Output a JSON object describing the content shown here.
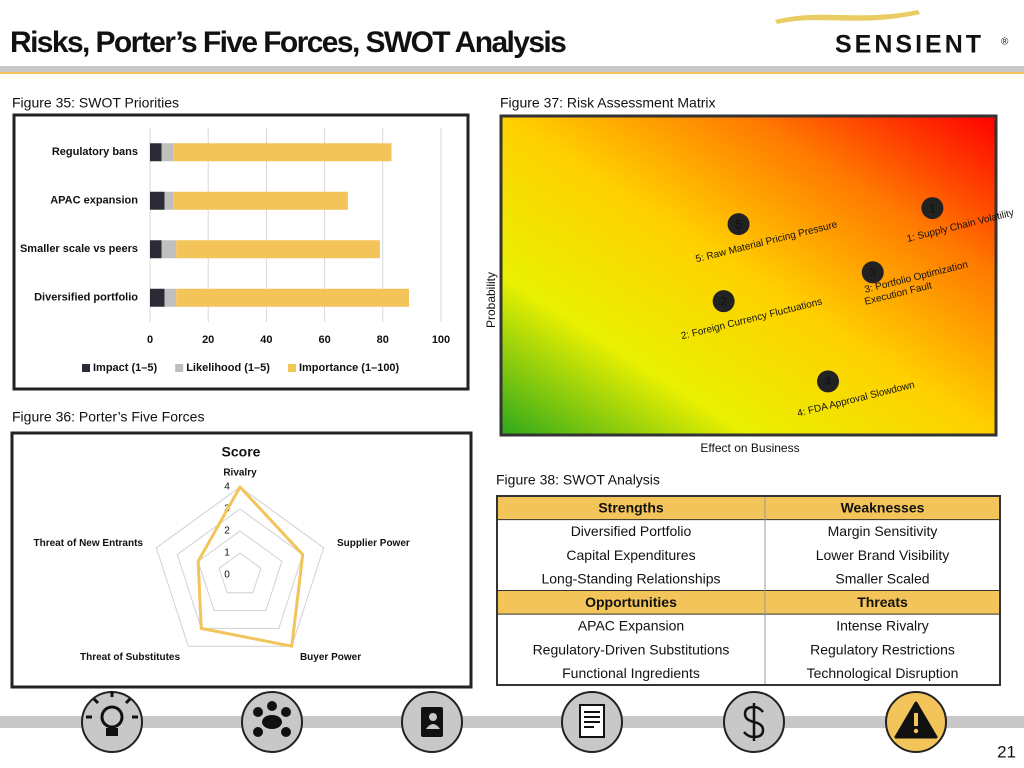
{
  "header": {
    "title": "Risks, Porter’s Five Forces, SWOT Analysis",
    "logo": "SENSIENT",
    "logo_mark": "®"
  },
  "page_number": "21",
  "chart_data": [
    {
      "type": "bar",
      "caption": "Figure 35: SWOT Priorities",
      "orientation": "horizontal",
      "stacked": true,
      "categories": [
        "Regulatory bans",
        "APAC expansion",
        "Smaller scale vs peers",
        "Diversified portfolio"
      ],
      "series": [
        {
          "name": "Impact (1–5)",
          "color": "#2b2b36",
          "values": [
            4,
            5,
            4,
            5
          ]
        },
        {
          "name": "Likelihood (1–5)",
          "color": "#bfbfbf",
          "values": [
            4,
            3,
            5,
            4
          ]
        },
        {
          "name": "Importance (1–100)",
          "color": "#f2c45a",
          "values": [
            75,
            60,
            70,
            80
          ]
        }
      ],
      "xlim": [
        0,
        100
      ],
      "xticks": [
        0,
        20,
        40,
        60,
        80,
        100
      ],
      "grid": true,
      "legend": "bottom"
    },
    {
      "type": "radar",
      "caption": "Figure 36: Porter’s Five Forces",
      "title": "Score",
      "categories": [
        "Rivalry",
        "Supplier Power",
        "Buyer Power",
        "Threat of Substitutes",
        "Threat of New Entrants"
      ],
      "values": [
        4,
        3,
        4,
        3,
        2
      ],
      "rlim": [
        0,
        4
      ],
      "rticks": [
        0,
        1,
        2,
        3,
        4
      ],
      "color": "#f2c45a",
      "grid": true
    },
    {
      "type": "scatter",
      "caption": "Figure 37: Risk Assessment Matrix",
      "xlabel": "Effect on Business",
      "ylabel": "Probability",
      "xlim": [
        0,
        1
      ],
      "ylim": [
        0,
        1
      ],
      "x": [
        0.87,
        0.45,
        0.75,
        0.66,
        0.48
      ],
      "y": [
        0.71,
        0.42,
        0.51,
        0.17,
        0.66
      ],
      "markers": [
        "1",
        "2",
        "3",
        "4",
        "5"
      ],
      "labels": [
        [
          "1: Supply Chain Volatility"
        ],
        [
          "2: Foreign Currency Fluctuations"
        ],
        [
          "3: Portfolio Optimization",
          "Execution Fault"
        ],
        [
          "4: FDA Approval Slowdown"
        ],
        [
          "5: Raw Material Pricing Pressure"
        ]
      ],
      "color": "#222222",
      "label_color": "#2a4a9a",
      "gradient": [
        "#2ea81a",
        "#e9f000",
        "#ffd000",
        "#ff7a00",
        "#ff0000"
      ]
    }
  ],
  "table": {
    "caption": "Figure 38: SWOT Analysis",
    "sections": [
      {
        "headers": [
          "Strengths",
          "Weaknesses"
        ],
        "rows": [
          [
            "Diversified Portfolio",
            "Margin Sensitivity"
          ],
          [
            "Capital Expenditures",
            "Lower Brand Visibility"
          ],
          [
            "Long-Standing Relationships",
            "Smaller Scaled"
          ]
        ]
      },
      {
        "headers": [
          "Opportunities",
          "Threats"
        ],
        "rows": [
          [
            "APAC Expansion",
            "Intense Rivalry"
          ],
          [
            "Regulatory-Driven Substitutions",
            "Regulatory Restrictions"
          ],
          [
            "Functional Ingredients",
            "Technological Disruption"
          ]
        ]
      }
    ]
  }
}
